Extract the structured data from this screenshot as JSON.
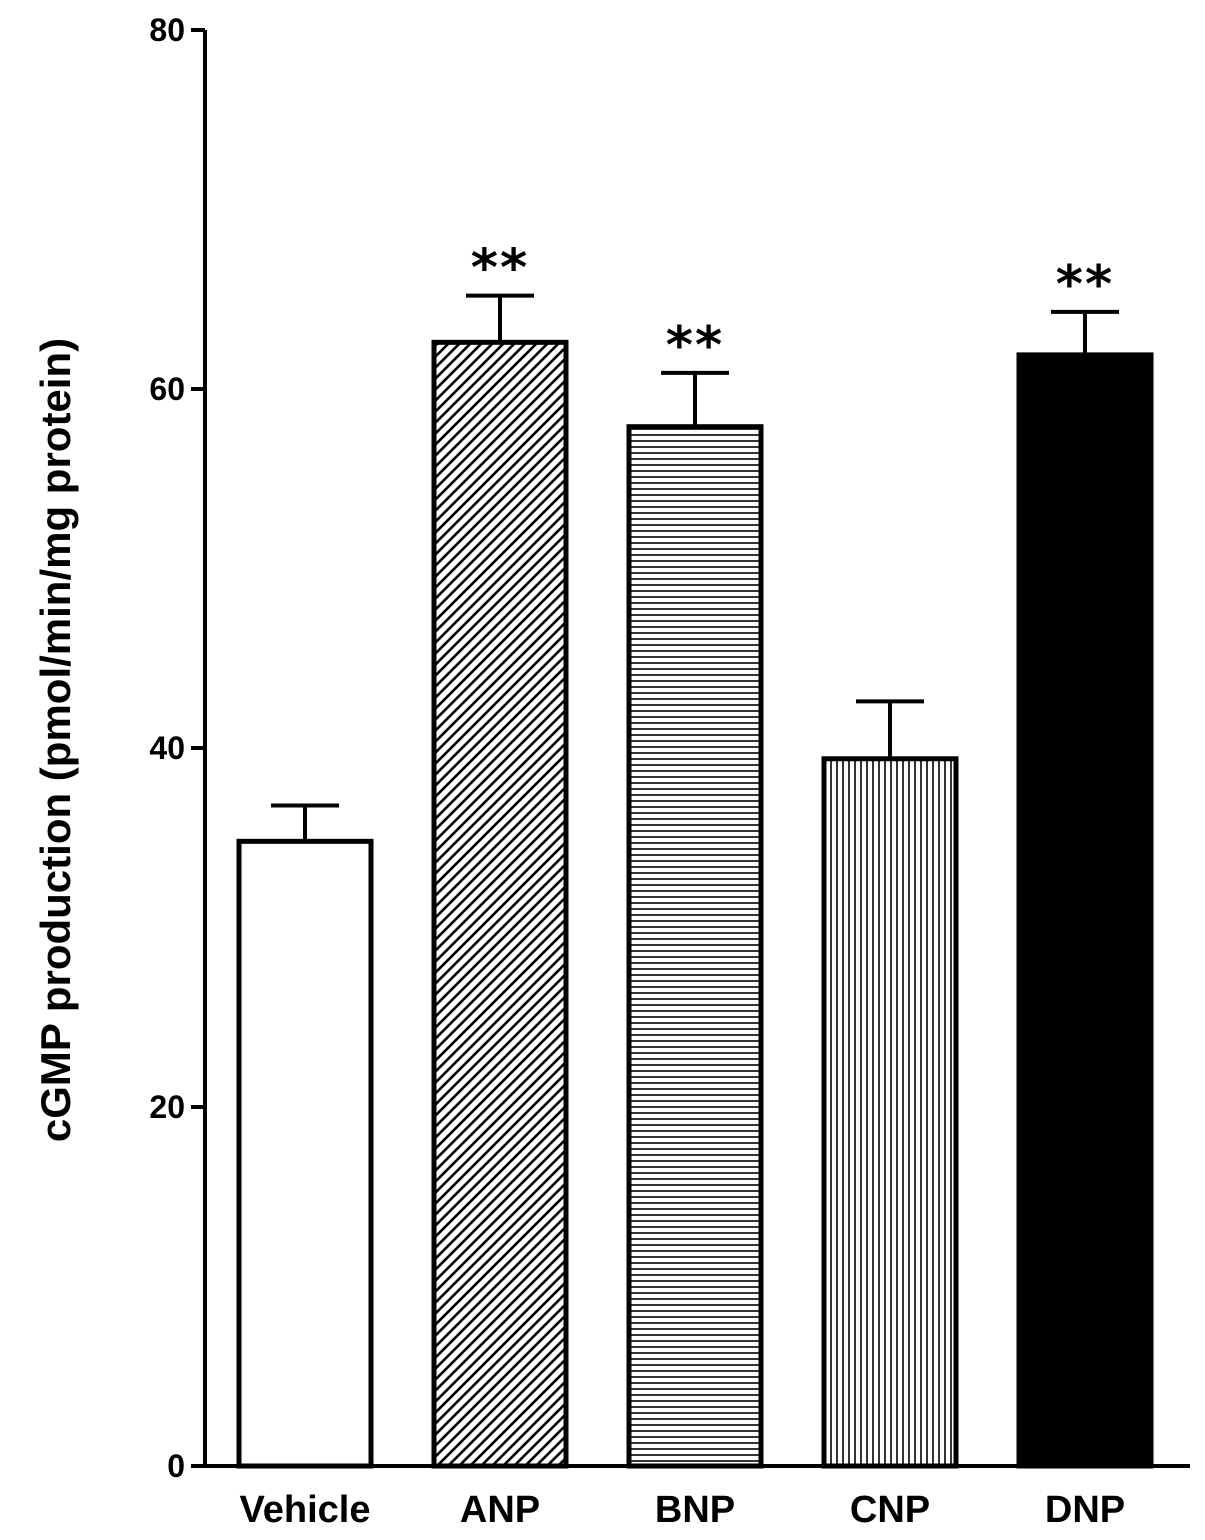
{
  "chart_data": {
    "type": "bar",
    "categories": [
      "Vehicle",
      "ANP",
      "BNP",
      "CNP",
      "DNP"
    ],
    "values": [
      34.8,
      62.6,
      57.9,
      39.4,
      61.9
    ],
    "errors": [
      2.0,
      2.6,
      3.0,
      3.2,
      2.4
    ],
    "annotations": [
      "",
      "**",
      "**",
      "",
      "**"
    ],
    "fills": [
      "open",
      "diagonal-hatch",
      "horizontal-lines",
      "vertical-lines",
      "solid"
    ],
    "ylabel": "cGMP production (pmol/min/mg protein)",
    "xlabel": "",
    "ylim": [
      0,
      80
    ],
    "yticks": [
      0,
      20,
      40,
      60,
      80
    ],
    "grid": false,
    "colors": {
      "stroke": "#000000",
      "background": "#ffffff"
    }
  }
}
